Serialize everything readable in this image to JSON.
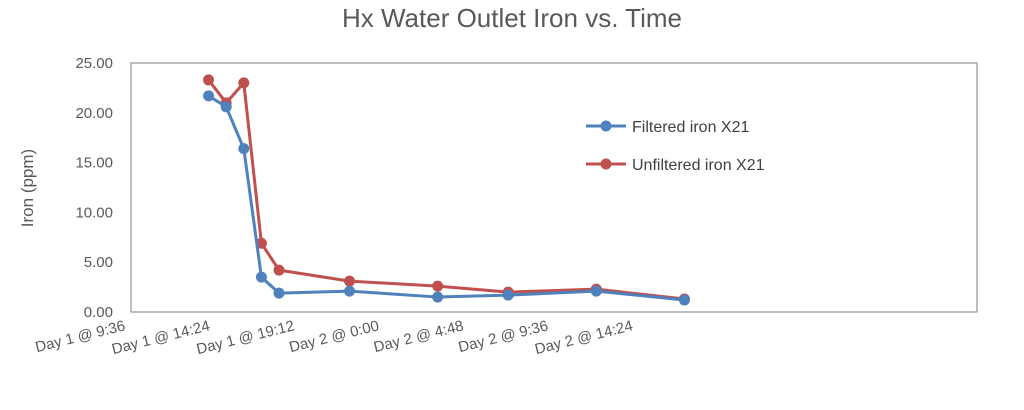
{
  "chart_data": {
    "type": "line",
    "title": "Hx Water Outlet Iron vs. Time",
    "xlabel": "",
    "ylabel": "Iron (ppm)",
    "ylim": [
      0,
      25
    ],
    "yticks": [
      "0.00",
      "5.00",
      "10.00",
      "15.00",
      "20.00",
      "25.00"
    ],
    "ytick_values": [
      0,
      5,
      10,
      15,
      20,
      25
    ],
    "xlim_hours": [
      0,
      48
    ],
    "xtick_labels": [
      "Day 1 @ 9:36",
      "Day 1 @ 14:24",
      "Day 1 @ 19:12",
      "Day 2 @ 0:00",
      "Day 2 @ 4:48",
      "Day 2 @ 9:36",
      "Day 2 @ 14:24"
    ],
    "xtick_hours": [
      0,
      4.8,
      9.6,
      14.4,
      19.2,
      24,
      28.8
    ],
    "grid": false,
    "legend_position": "right",
    "series": [
      {
        "name": "Filtered iron X21",
        "color": "#4f81bd",
        "x": [
          "Day 1 @ 14:00",
          "Day 1 @ 15:00",
          "Day 1 @ 16:00",
          "Day 1 @ 17:00",
          "Day 1 @ 18:00",
          "Day 1 @ 22:00",
          "Day 2 @ 3:00",
          "Day 2 @ 7:00",
          "Day 2 @ 12:00",
          "Day 2 @ 17:00"
        ],
        "x_hours": [
          4.4,
          5.4,
          6.4,
          7.4,
          8.4,
          12.4,
          17.4,
          21.4,
          26.4,
          31.4
        ],
        "y": [
          21.7,
          20.6,
          16.4,
          3.5,
          1.9,
          2.1,
          1.5,
          1.7,
          2.1,
          1.2
        ]
      },
      {
        "name": "Unfiltered iron X21",
        "color": "#c0504d",
        "x": [
          "Day 1 @ 14:00",
          "Day 1 @ 15:00",
          "Day 1 @ 16:00",
          "Day 1 @ 17:00",
          "Day 1 @ 18:00",
          "Day 1 @ 22:00",
          "Day 2 @ 3:00",
          "Day 2 @ 7:00",
          "Day 2 @ 12:00",
          "Day 2 @ 17:00"
        ],
        "x_hours": [
          4.4,
          5.4,
          6.4,
          7.4,
          8.4,
          12.4,
          17.4,
          21.4,
          26.4,
          31.4
        ],
        "y": [
          23.3,
          21.0,
          23.0,
          6.9,
          4.2,
          3.1,
          2.6,
          2.0,
          2.3,
          1.3
        ]
      }
    ]
  }
}
